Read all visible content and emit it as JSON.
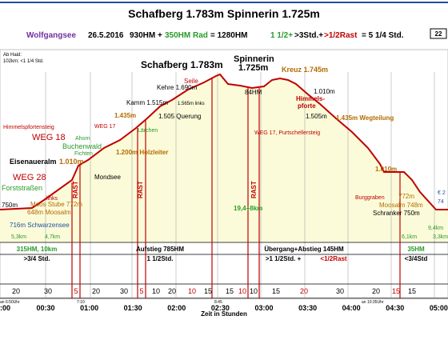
{
  "header": {
    "title": "Schafberg 1.783m Spinnerin 1.725m",
    "line": [
      "Wolfgangsee",
      "26.5.2016",
      "930HM +",
      "350HM Rad",
      "= 1280HM",
      "1 1/2+",
      ">3Std.+",
      ">1/2Rast",
      "= 5 1/4 Std."
    ],
    "note": [
      "Ab Haid:",
      "102km; <1 1/4 Std."
    ],
    "page": "22"
  },
  "labels": [
    "Schafberg 1.783m",
    "Spinnerin",
    "1.725m",
    "Seile",
    "Kehre 1.690m",
    "Kreuz 1.745m",
    "84HM",
    "1.010m",
    "Himmels-",
    "pforte",
    "Kamm 1.515m",
    "1.565m links",
    "1.505 Querung",
    "1.435m",
    "WEG 17",
    "Lärchen",
    "1.505m",
    "1.435m Wegteilung",
    "WEG 17, Purtschellersteig",
    "Himmelspfortensteig",
    "WEG 18",
    "Ahorn",
    "Buchenwald",
    "Fichten",
    "1.200m Holzleiter",
    "Eisenaueralm",
    "1.010m",
    "Mondsee",
    "WEG 28",
    "Forststraßen",
    "links",
    "Moos Stube 772m",
    "648m Moosalm",
    "750m",
    "716m Schwarzensee",
    "5,3km",
    "4,7km",
    "RAST",
    "RAST",
    "RAST",
    "19,4+8km",
    "1.010m",
    "Burggraben",
    "772m",
    "Moosalm 748m",
    "Schranker 750m",
    "€ 2",
    "74",
    "6,1km",
    "9,4km",
    "3,3km"
  ],
  "band": [
    "315HM, 10km",
    ">3/4 Std.",
    "Aufstieg 785HM",
    "1 1/2Std.",
    "Übergang+Abstieg 145HM",
    ">1 1/2Std. + ",
    "<1/2Rast",
    "35HM",
    "<3/4Std"
  ],
  "minutes": [
    "20",
    "30",
    "5",
    "20",
    "30",
    "5",
    "10",
    "20",
    "10",
    "15",
    "15",
    "10",
    "10",
    "15",
    "20",
    "30",
    "20",
    "15",
    "15"
  ],
  "times": [
    ":00",
    "00:30",
    "01:00",
    "01:30",
    "02:00",
    "02:30",
    "03:00",
    "03:30",
    "04:00",
    "04:30",
    "05:00"
  ],
  "time_notes": [
    "an 6:50Uhr",
    "7:10",
    "8:45",
    "an 10:35Uhr"
  ],
  "axis_title": "Zeit in Stunden"
}
